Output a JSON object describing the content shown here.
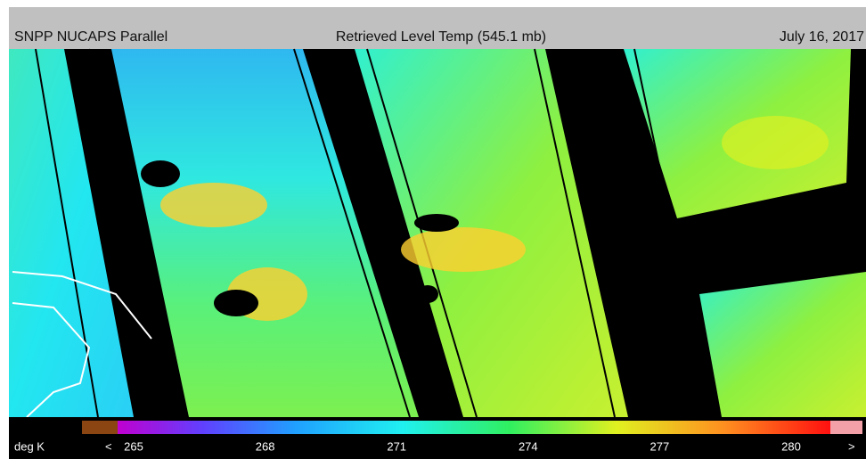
{
  "header": {
    "left": "SNPP NUCAPS Parallel",
    "center": "Retrieved Level Temp (545.1 mb)",
    "right": "July 16, 2017"
  },
  "colorbar": {
    "unit": "deg K",
    "less": "<",
    "more": ">",
    "ticks": [
      265,
      268,
      271,
      274,
      277,
      280
    ]
  }
}
